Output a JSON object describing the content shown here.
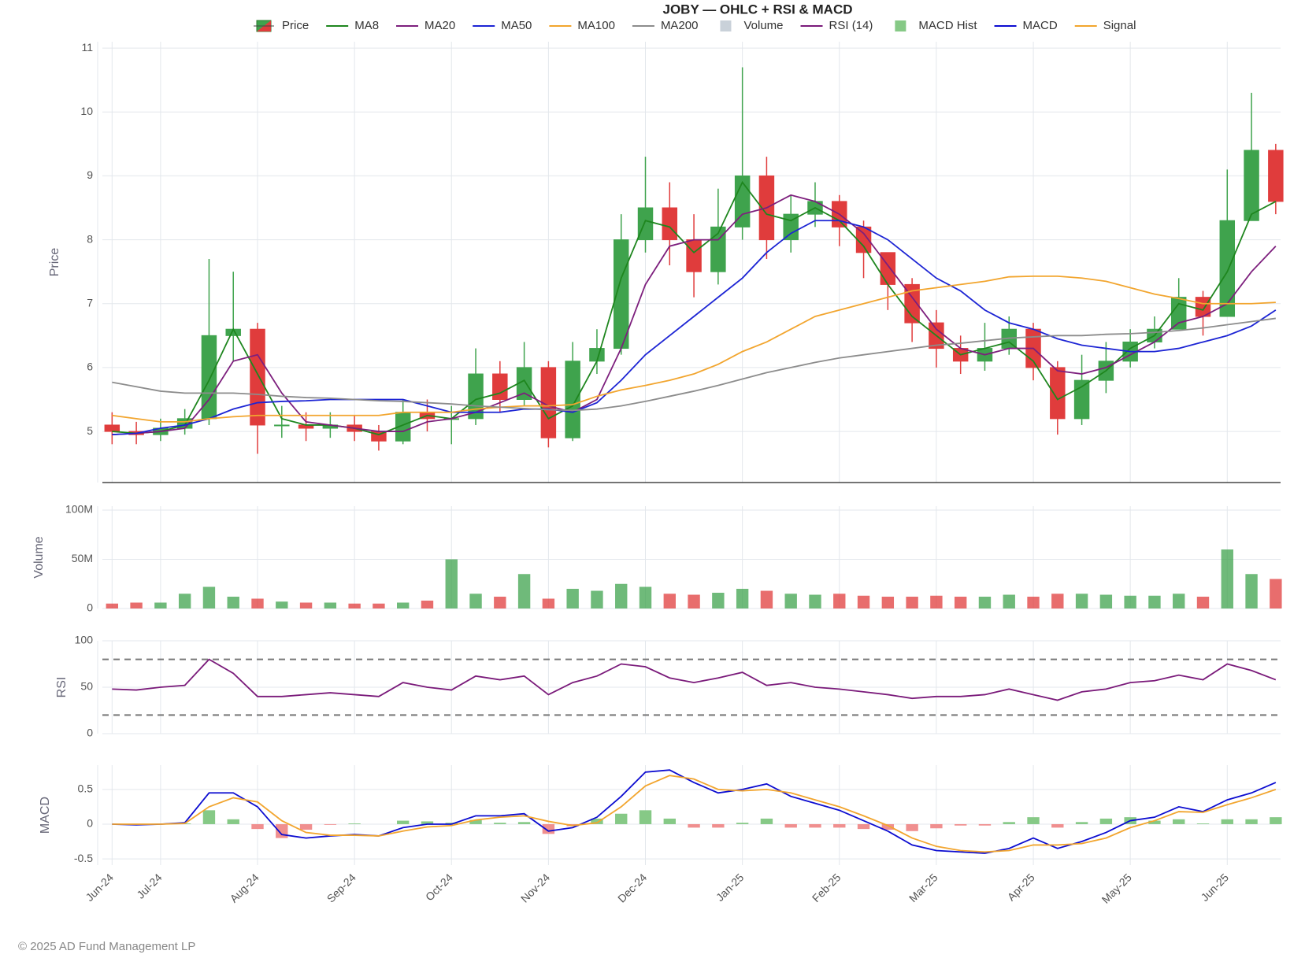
{
  "footer": "© 2025 AD Fund Management LP",
  "chart_data": [
    {
      "type": "candlestick",
      "title": "JOBY — OHLC + RSI & MACD",
      "y_label": "Price",
      "name": "Price",
      "up_color": "#3fa34d",
      "down_color": "#e03c3c",
      "grid": true,
      "x": [
        0.5,
        0.75,
        1,
        1.25,
        1.5,
        1.75,
        2,
        2.25,
        2.5,
        2.75,
        3,
        3.25,
        3.5,
        3.75,
        4,
        4.25,
        4.5,
        4.75,
        5,
        5.25,
        5.5,
        5.75,
        6,
        6.25,
        6.5,
        6.75,
        7,
        7.25,
        7.5,
        7.75,
        8,
        8.25,
        8.5,
        8.75,
        9,
        9.25,
        9.5,
        9.75,
        10,
        10.25,
        10.5,
        10.75,
        11,
        11.25,
        11.5,
        11.75,
        12,
        12.25,
        12.5
      ],
      "xlim": [
        0.4,
        12.55
      ],
      "ylim": [
        4.2,
        11.1
      ],
      "yticks": [
        5,
        6,
        7,
        8,
        9,
        10,
        11
      ],
      "open": [
        5.1,
        5.0,
        4.95,
        5.05,
        5.2,
        6.5,
        6.6,
        5.1,
        5.1,
        5.05,
        5.1,
        5.0,
        4.85,
        5.3,
        5.2,
        5.2,
        5.9,
        5.5,
        6.0,
        4.9,
        6.1,
        6.3,
        8.0,
        8.5,
        8.0,
        7.5,
        8.2,
        9.0,
        8.0,
        8.4,
        8.6,
        8.2,
        7.8,
        7.3,
        6.7,
        6.3,
        6.1,
        6.3,
        6.6,
        6.0,
        5.2,
        5.8,
        6.1,
        6.4,
        6.6,
        7.1,
        6.8,
        8.3,
        9.4
      ],
      "high": [
        5.3,
        5.15,
        5.2,
        5.35,
        7.7,
        7.5,
        6.7,
        5.4,
        5.3,
        5.3,
        5.25,
        5.1,
        5.5,
        5.5,
        5.4,
        6.3,
        6.1,
        6.4,
        6.1,
        6.4,
        6.6,
        8.4,
        9.3,
        8.9,
        8.4,
        8.8,
        10.7,
        9.3,
        8.7,
        8.9,
        8.7,
        8.3,
        7.8,
        7.4,
        6.9,
        6.5,
        6.7,
        6.8,
        6.7,
        6.1,
        6.2,
        6.4,
        6.6,
        6.8,
        7.4,
        7.2,
        9.1,
        10.3,
        9.5
      ],
      "low": [
        4.8,
        4.8,
        4.85,
        4.95,
        5.1,
        6.1,
        4.65,
        4.9,
        4.85,
        4.9,
        4.85,
        4.7,
        4.8,
        5.0,
        4.8,
        5.1,
        5.3,
        5.4,
        4.75,
        4.85,
        5.9,
        6.2,
        7.8,
        7.6,
        7.1,
        7.3,
        8.0,
        7.7,
        7.8,
        8.2,
        7.9,
        7.4,
        6.9,
        6.4,
        6.0,
        5.9,
        5.95,
        6.2,
        5.8,
        4.95,
        5.1,
        5.6,
        6.0,
        6.3,
        6.6,
        6.5,
        6.8,
        8.3,
        8.4
      ],
      "close": [
        5.0,
        4.95,
        5.05,
        5.2,
        6.5,
        6.6,
        5.1,
        5.1,
        5.05,
        5.1,
        5.0,
        4.85,
        5.3,
        5.2,
        5.2,
        5.9,
        5.5,
        6.0,
        4.9,
        6.1,
        6.3,
        8.0,
        8.5,
        8.0,
        7.5,
        8.2,
        9.0,
        8.0,
        8.4,
        8.6,
        8.2,
        7.8,
        7.3,
        6.7,
        6.3,
        6.1,
        6.3,
        6.6,
        6.0,
        5.2,
        5.8,
        6.1,
        6.4,
        6.6,
        7.1,
        6.8,
        8.3,
        9.4,
        8.6
      ],
      "series": [
        {
          "name": "MA8",
          "color": "#1e861e",
          "values": [
            5.0,
            4.97,
            5.0,
            5.1,
            5.8,
            6.6,
            5.9,
            5.2,
            5.1,
            5.1,
            5.05,
            4.95,
            5.1,
            5.25,
            5.2,
            5.5,
            5.6,
            5.8,
            5.2,
            5.4,
            6.1,
            7.4,
            8.3,
            8.2,
            7.8,
            8.1,
            8.9,
            8.4,
            8.3,
            8.5,
            8.3,
            7.9,
            7.3,
            6.8,
            6.5,
            6.2,
            6.3,
            6.4,
            6.1,
            5.5,
            5.7,
            5.95,
            6.3,
            6.5,
            7.0,
            6.9,
            7.5,
            8.4,
            8.6
          ]
        },
        {
          "name": "MA20",
          "color": "#7d1f7d",
          "values": [
            4.95,
            4.97,
            5.0,
            5.05,
            5.5,
            6.1,
            6.2,
            5.6,
            5.15,
            5.1,
            5.05,
            5.0,
            5.0,
            5.15,
            5.2,
            5.3,
            5.45,
            5.6,
            5.4,
            5.3,
            5.5,
            6.3,
            7.3,
            7.9,
            8.0,
            8.0,
            8.4,
            8.5,
            8.7,
            8.6,
            8.4,
            8.1,
            7.6,
            7.1,
            6.6,
            6.3,
            6.2,
            6.3,
            6.3,
            5.95,
            5.9,
            6.0,
            6.2,
            6.4,
            6.7,
            6.8,
            7.0,
            7.5,
            7.9
          ]
        },
        {
          "name": "MA50",
          "color": "#1c24d4",
          "values": [
            4.95,
            4.97,
            5.05,
            5.1,
            5.2,
            5.35,
            5.45,
            5.47,
            5.48,
            5.5,
            5.5,
            5.5,
            5.5,
            5.4,
            5.3,
            5.3,
            5.3,
            5.35,
            5.35,
            5.3,
            5.45,
            5.8,
            6.2,
            6.5,
            6.8,
            7.1,
            7.4,
            7.8,
            8.1,
            8.3,
            8.3,
            8.2,
            8.0,
            7.7,
            7.4,
            7.2,
            6.9,
            6.7,
            6.6,
            6.45,
            6.35,
            6.3,
            6.25,
            6.25,
            6.3,
            6.4,
            6.5,
            6.65,
            6.9
          ]
        },
        {
          "name": "MA100",
          "color": "#f2a52e",
          "values": [
            5.25,
            5.2,
            5.15,
            5.15,
            5.2,
            5.23,
            5.25,
            5.25,
            5.25,
            5.25,
            5.25,
            5.25,
            5.3,
            5.3,
            5.3,
            5.35,
            5.38,
            5.4,
            5.4,
            5.42,
            5.55,
            5.65,
            5.72,
            5.8,
            5.9,
            6.05,
            6.25,
            6.4,
            6.6,
            6.8,
            6.9,
            7.0,
            7.1,
            7.2,
            7.25,
            7.3,
            7.35,
            7.42,
            7.43,
            7.43,
            7.4,
            7.35,
            7.25,
            7.15,
            7.08,
            7.0,
            7.0,
            7.0,
            7.02
          ]
        },
        {
          "name": "MA200",
          "color": "#8c8c8c",
          "values": [
            5.77,
            5.7,
            5.63,
            5.6,
            5.6,
            5.6,
            5.58,
            5.55,
            5.53,
            5.52,
            5.5,
            5.48,
            5.47,
            5.45,
            5.43,
            5.4,
            5.38,
            5.36,
            5.34,
            5.33,
            5.35,
            5.4,
            5.47,
            5.55,
            5.63,
            5.72,
            5.82,
            5.92,
            6.0,
            6.08,
            6.15,
            6.2,
            6.25,
            6.3,
            6.35,
            6.38,
            6.42,
            6.46,
            6.48,
            6.5,
            6.5,
            6.52,
            6.53,
            6.55,
            6.58,
            6.62,
            6.67,
            6.72,
            6.77
          ]
        }
      ]
    },
    {
      "type": "volume",
      "y_label": "Volume",
      "grid": true,
      "x": [
        0.5,
        0.75,
        1,
        1.25,
        1.5,
        1.75,
        2,
        2.25,
        2.5,
        2.75,
        3,
        3.25,
        3.5,
        3.75,
        4,
        4.25,
        4.5,
        4.75,
        5,
        5.25,
        5.5,
        5.75,
        6,
        6.25,
        6.5,
        6.75,
        7,
        7.25,
        7.5,
        7.75,
        8,
        8.25,
        8.5,
        8.75,
        9,
        9.25,
        9.5,
        9.75,
        10,
        10.25,
        10.5,
        10.75,
        11,
        11.25,
        11.5,
        11.75,
        12,
        12.25,
        12.5
      ],
      "xlim": [
        0.4,
        12.55
      ],
      "ylim": [
        0,
        104000000
      ],
      "yticks": [
        0,
        {
          "value": 50000000,
          "label": "50M"
        },
        {
          "value": 100000000,
          "label": "100M"
        }
      ],
      "series": [
        {
          "name": "Volume",
          "color": "#c9d1d9",
          "values": [
            5000000,
            6000000,
            6000000,
            15000000,
            22000000,
            12000000,
            10000000,
            7000000,
            6000000,
            6000000,
            5000000,
            5000000,
            6000000,
            8000000,
            50000000,
            15000000,
            12000000,
            35000000,
            10000000,
            20000000,
            18000000,
            25000000,
            22000000,
            15000000,
            14000000,
            16000000,
            20000000,
            18000000,
            15000000,
            14000000,
            15000000,
            13000000,
            12000000,
            12000000,
            13000000,
            12000000,
            12000000,
            14000000,
            12000000,
            15000000,
            15000000,
            14000000,
            13000000,
            13000000,
            15000000,
            12000000,
            60000000,
            35000000,
            30000000
          ]
        }
      ]
    },
    {
      "type": "line",
      "y_label": "RSI",
      "grid": true,
      "x": [
        0.5,
        0.75,
        1,
        1.25,
        1.5,
        1.75,
        2,
        2.25,
        2.5,
        2.75,
        3,
        3.25,
        3.5,
        3.75,
        4,
        4.25,
        4.5,
        4.75,
        5,
        5.25,
        5.5,
        5.75,
        6,
        6.25,
        6.5,
        6.75,
        7,
        7.25,
        7.5,
        7.75,
        8,
        8.25,
        8.5,
        8.75,
        9,
        9.25,
        9.5,
        9.75,
        10,
        10.25,
        10.5,
        10.75,
        11,
        11.25,
        11.5,
        11.75,
        12,
        12.25,
        12.5
      ],
      "xlim": [
        0.4,
        12.55
      ],
      "ylim": [
        0,
        100
      ],
      "yticks": [
        0,
        50,
        100
      ],
      "hlines": [
        20,
        80
      ],
      "series": [
        {
          "name": "RSI (14)",
          "color": "#7a1a7a",
          "values": [
            48,
            47,
            50,
            52,
            80,
            65,
            40,
            40,
            42,
            44,
            42,
            40,
            55,
            50,
            47,
            62,
            58,
            62,
            42,
            55,
            62,
            75,
            72,
            60,
            55,
            60,
            66,
            52,
            55,
            50,
            48,
            45,
            42,
            38,
            40,
            40,
            42,
            48,
            42,
            36,
            45,
            48,
            55,
            57,
            63,
            58,
            75,
            68,
            58
          ]
        }
      ]
    },
    {
      "type": "macd",
      "y_label": "MACD",
      "grid": true,
      "x": [
        0.5,
        0.75,
        1,
        1.25,
        1.5,
        1.75,
        2,
        2.25,
        2.5,
        2.75,
        3,
        3.25,
        3.5,
        3.75,
        4,
        4.25,
        4.5,
        4.75,
        5,
        5.25,
        5.5,
        5.75,
        6,
        6.25,
        6.5,
        6.75,
        7,
        7.25,
        7.5,
        7.75,
        8,
        8.25,
        8.5,
        8.75,
        9,
        9.25,
        9.5,
        9.75,
        10,
        10.25,
        10.5,
        10.75,
        11,
        11.25,
        11.5,
        11.75,
        12,
        12.25,
        12.5
      ],
      "xlim": [
        0.4,
        12.55
      ],
      "ylim": [
        -0.59,
        0.85
      ],
      "yticks": [
        -0.5,
        0,
        0.5
      ],
      "xticks": [
        {
          "value": 0.5,
          "label": "Jun-24"
        },
        {
          "value": 1,
          "label": "Jul-24"
        },
        {
          "value": 2,
          "label": "Aug-24"
        },
        {
          "value": 3,
          "label": "Sep-24"
        },
        {
          "value": 4,
          "label": "Oct-24"
        },
        {
          "value": 5,
          "label": "Nov-24"
        },
        {
          "value": 6,
          "label": "Dec-24"
        },
        {
          "value": 7,
          "label": "Jan-25"
        },
        {
          "value": 8,
          "label": "Feb-25"
        },
        {
          "value": 9,
          "label": "Mar-25"
        },
        {
          "value": 10,
          "label": "Apr-25"
        },
        {
          "value": 11,
          "label": "May-25"
        },
        {
          "value": 12,
          "label": "Jun-25"
        }
      ],
      "series": [
        {
          "name": "MACD Hist",
          "kind": "bar",
          "color": "#86c986",
          "negative_color": "#f08f8f",
          "values": [
            0,
            -0.01,
            0,
            0.01,
            0.2,
            0.07,
            -0.07,
            -0.2,
            -0.08,
            -0.01,
            0.01,
            0,
            0.05,
            0.04,
            0.02,
            0.06,
            0.02,
            0.03,
            -0.14,
            -0.03,
            0.08,
            0.15,
            0.2,
            0.08,
            -0.05,
            -0.05,
            0.02,
            0.08,
            -0.05,
            -0.05,
            -0.05,
            -0.07,
            -0.08,
            -0.1,
            -0.06,
            -0.02,
            -0.02,
            0.03,
            0.1,
            -0.05,
            0.03,
            0.08,
            0.1,
            0.05,
            0.07,
            0.01,
            0.07,
            0.07,
            0.1
          ]
        },
        {
          "name": "MACD",
          "color": "#0c0cd0",
          "values": [
            0,
            -0.01,
            0,
            0.02,
            0.45,
            0.45,
            0.25,
            -0.15,
            -0.2,
            -0.17,
            -0.15,
            -0.17,
            -0.05,
            0,
            0,
            0.12,
            0.12,
            0.15,
            -0.1,
            -0.05,
            0.1,
            0.4,
            0.75,
            0.78,
            0.6,
            0.45,
            0.5,
            0.58,
            0.4,
            0.3,
            0.2,
            0.05,
            -0.1,
            -0.3,
            -0.38,
            -0.4,
            -0.42,
            -0.35,
            -0.2,
            -0.35,
            -0.25,
            -0.12,
            0.05,
            0.1,
            0.25,
            0.18,
            0.35,
            0.45,
            0.6
          ]
        },
        {
          "name": "Signal",
          "color": "#f2a52e",
          "values": [
            0,
            0,
            0,
            0.01,
            0.25,
            0.38,
            0.32,
            0.05,
            -0.12,
            -0.16,
            -0.16,
            -0.17,
            -0.1,
            -0.04,
            -0.02,
            0.06,
            0.1,
            0.12,
            0.04,
            -0.02,
            0.02,
            0.25,
            0.55,
            0.7,
            0.65,
            0.5,
            0.48,
            0.5,
            0.45,
            0.35,
            0.25,
            0.12,
            -0.02,
            -0.2,
            -0.32,
            -0.38,
            -0.4,
            -0.38,
            -0.3,
            -0.3,
            -0.28,
            -0.2,
            -0.05,
            0.05,
            0.18,
            0.17,
            0.28,
            0.38,
            0.5
          ]
        }
      ]
    }
  ]
}
